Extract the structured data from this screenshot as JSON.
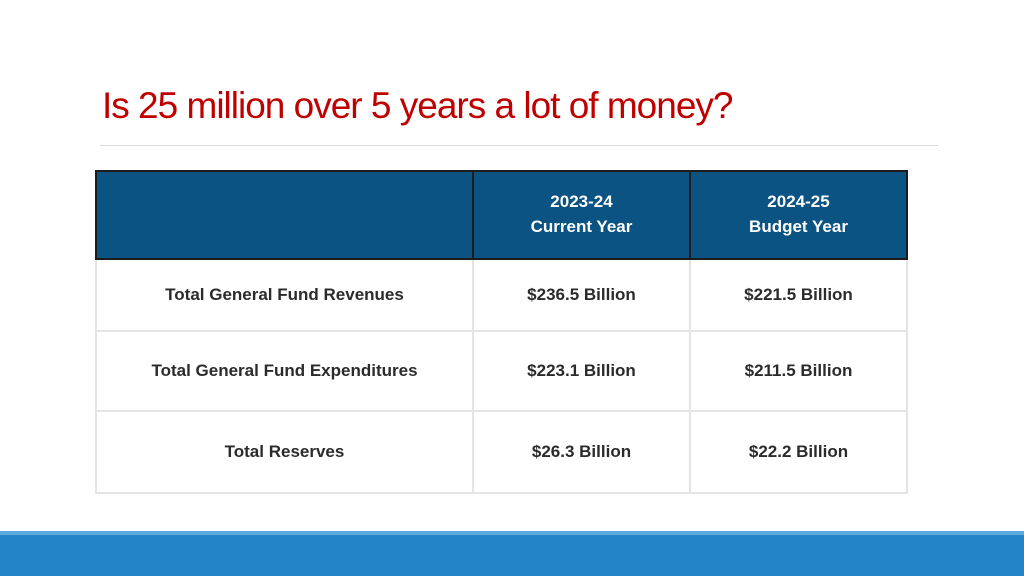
{
  "slide": {
    "title": "Is 25 million over 5 years a lot of money?"
  },
  "table": {
    "columns": [
      {
        "line1": "",
        "line2": ""
      },
      {
        "line1": "2023-24",
        "line2": "Current Year"
      },
      {
        "line1": "2024-25",
        "line2": "Budget Year"
      }
    ],
    "rows": [
      {
        "label": "Total General Fund Revenues",
        "current": "$236.5 Billion",
        "budget": "$221.5 Billion"
      },
      {
        "label": "Total General Fund Expenditures",
        "current": "$223.1 Billion",
        "budget": "$211.5 Billion"
      },
      {
        "label": "Total Reserves",
        "current": "$26.3 Billion",
        "budget": "$22.2 Billion"
      }
    ]
  },
  "colors": {
    "title": "#c00000",
    "header_bg": "#0b5383",
    "footer_band": "#2584c6"
  }
}
